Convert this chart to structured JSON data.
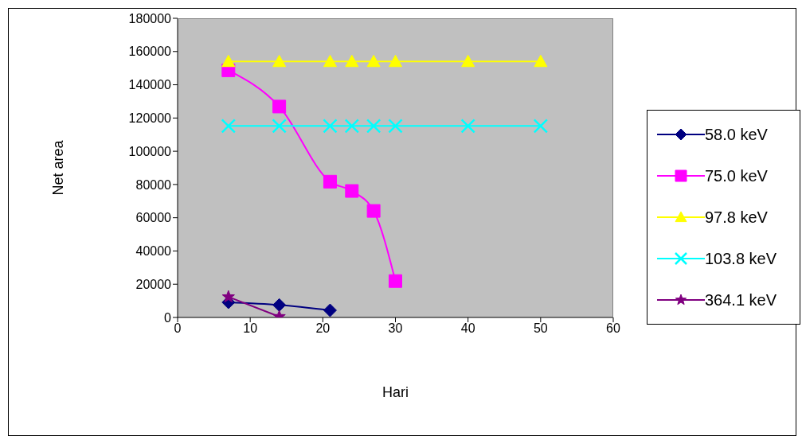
{
  "chart_data": {
    "type": "line",
    "xlabel": "Hari",
    "ylabel": "Net area",
    "xlim": [
      0,
      60
    ],
    "xticks": [
      0,
      10,
      20,
      30,
      40,
      50,
      60
    ],
    "ylim": [
      0,
      180000
    ],
    "yticks": [
      0,
      20000,
      40000,
      60000,
      80000,
      100000,
      120000,
      140000,
      160000,
      180000
    ],
    "legend": "right",
    "series": [
      {
        "name": "58.0 keV",
        "color": "#000080",
        "marker": "diamond",
        "x": [
          7,
          14,
          21
        ],
        "values": [
          9100,
          7500,
          4300
        ]
      },
      {
        "name": "75.0 keV",
        "color": "#ff00ff",
        "marker": "square",
        "x": [
          7,
          14,
          21,
          24,
          27,
          30
        ],
        "values": [
          148700,
          126900,
          81700,
          76100,
          64100,
          21900
        ]
      },
      {
        "name": "97.8 keV",
        "color": "#ffff00",
        "marker": "triangle",
        "x": [
          7,
          14,
          21,
          24,
          27,
          30,
          40,
          50
        ],
        "values": [
          154000,
          154000,
          154000,
          154000,
          154000,
          154000,
          154000,
          154000
        ]
      },
      {
        "name": "103.8 keV",
        "color": "#00ffff",
        "marker": "cross",
        "x": [
          7,
          14,
          21,
          24,
          27,
          30,
          40,
          50
        ],
        "values": [
          115200,
          115200,
          115200,
          115200,
          115200,
          115200,
          115200,
          115200
        ]
      },
      {
        "name": "364.1 keV",
        "color": "#800080",
        "marker": "star",
        "x": [
          7,
          14
        ],
        "values": [
          12400,
          500
        ]
      }
    ]
  }
}
